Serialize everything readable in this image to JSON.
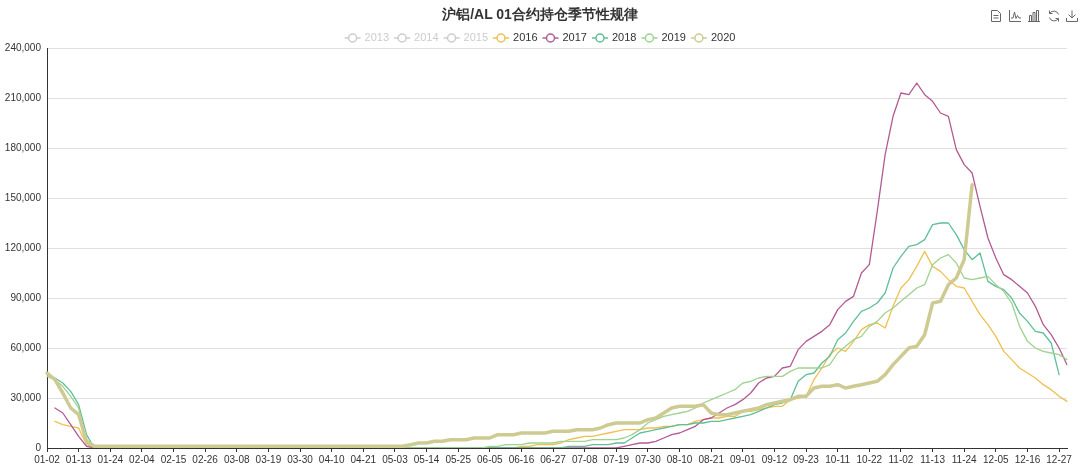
{
  "chart_data": {
    "type": "line",
    "title": "沪铝/AL 01合约持仓季节性规律",
    "legend": "top",
    "grid": "y",
    "marker": "none",
    "categories": [
      "01-02",
      null,
      null,
      null,
      "01-13",
      null,
      null,
      null,
      "01-24",
      null,
      null,
      null,
      "02-04",
      null,
      null,
      null,
      "02-15",
      null,
      null,
      null,
      "02-26",
      null,
      null,
      null,
      "03-08",
      null,
      null,
      null,
      "03-19",
      null,
      null,
      null,
      "03-30",
      null,
      null,
      null,
      "04-10",
      null,
      null,
      null,
      "04-21",
      null,
      null,
      null,
      "05-03",
      null,
      null,
      null,
      "05-14",
      null,
      null,
      null,
      "05-25",
      null,
      null,
      null,
      "06-05",
      null,
      null,
      null,
      "06-16",
      null,
      null,
      null,
      "06-27",
      null,
      null,
      null,
      "07-08",
      null,
      null,
      null,
      "07-19",
      null,
      null,
      null,
      "07-30",
      null,
      null,
      null,
      "08-10",
      null,
      null,
      null,
      "08-21",
      null,
      null,
      null,
      "09-01",
      null,
      null,
      null,
      "09-12",
      null,
      null,
      null,
      "09-23",
      null,
      null,
      null,
      "10-11",
      null,
      null,
      null,
      "10-22",
      null,
      null,
      null,
      "11-02",
      null,
      null,
      null,
      "11-13",
      null,
      null,
      null,
      "11-24",
      null,
      null,
      null,
      "12-05",
      null,
      null,
      null,
      "12-16",
      null,
      null,
      null,
      "12-27",
      null
    ],
    "ylim": [
      0,
      240000
    ],
    "yticks": [
      0,
      {
        "value": 30000,
        "label": "30,000"
      },
      {
        "value": 60000,
        "label": "60,000"
      },
      {
        "value": 90000,
        "label": "90,000"
      },
      {
        "value": 120000,
        "label": "120,000"
      },
      {
        "value": 150000,
        "label": "150,000"
      },
      {
        "value": 180000,
        "label": "180,000"
      },
      {
        "value": 210000,
        "label": "210,000"
      },
      {
        "value": 240000,
        "label": "240,000"
      }
    ],
    "series": [
      {
        "name": "2013",
        "color": "#cccccc",
        "values": [
          null,
          null,
          null,
          null,
          null,
          null,
          null,
          null,
          null,
          null,
          null,
          null,
          null,
          null,
          null,
          null,
          null,
          null,
          null,
          null,
          null,
          null,
          null,
          null,
          null,
          null,
          null,
          null,
          null,
          null,
          null,
          null,
          null,
          null,
          null,
          null,
          null,
          null,
          null,
          null,
          null,
          null,
          null,
          null,
          null,
          null,
          null,
          null,
          null,
          null,
          null,
          null,
          null,
          null,
          null,
          null,
          null,
          null,
          null,
          null,
          null,
          null,
          null,
          null,
          null,
          null,
          null,
          null,
          null,
          null,
          null,
          null,
          null,
          null,
          null,
          null,
          null,
          null,
          null,
          null,
          null,
          null,
          null,
          null,
          null,
          null,
          null,
          null,
          null,
          null,
          null,
          null,
          null,
          null,
          null,
          null,
          null,
          null,
          null,
          null,
          null,
          null,
          null,
          null,
          null,
          null,
          null,
          null,
          null,
          null,
          null,
          null,
          null,
          null,
          null,
          null,
          null,
          null,
          null,
          null,
          null,
          null,
          null,
          null,
          null,
          null,
          null,
          null,
          null,
          null
        ]
      },
      {
        "name": "2014",
        "color": "#cccccc",
        "values": [
          null,
          null,
          null,
          null,
          null,
          null,
          null,
          null,
          null,
          null,
          null,
          null,
          null,
          null,
          null,
          null,
          null,
          null,
          null,
          null,
          null,
          null,
          null,
          null,
          null,
          null,
          null,
          null,
          null,
          null,
          null,
          null,
          null,
          null,
          null,
          null,
          null,
          null,
          null,
          null,
          null,
          null,
          null,
          null,
          null,
          null,
          null,
          null,
          null,
          null,
          null,
          null,
          null,
          null,
          null,
          null,
          null,
          null,
          null,
          null,
          null,
          null,
          null,
          null,
          null,
          null,
          null,
          null,
          null,
          null,
          null,
          null,
          null,
          null,
          null,
          null,
          null,
          null,
          null,
          null,
          null,
          null,
          null,
          null,
          null,
          null,
          null,
          null,
          null,
          null,
          null,
          null,
          null,
          null,
          null,
          null,
          null,
          null,
          null,
          null,
          null,
          null,
          null,
          null,
          null,
          null,
          null,
          null,
          null,
          null,
          null,
          null,
          null,
          null,
          null,
          null,
          null,
          null,
          null,
          null,
          null,
          null,
          null,
          null,
          null,
          null,
          null,
          null,
          null,
          null
        ]
      },
      {
        "name": "2015",
        "color": "#cccccc",
        "values": [
          null,
          null,
          null,
          null,
          null,
          null,
          null,
          null,
          null,
          null,
          null,
          null,
          null,
          null,
          null,
          null,
          null,
          null,
          null,
          null,
          null,
          null,
          null,
          null,
          null,
          null,
          null,
          null,
          null,
          null,
          null,
          null,
          null,
          null,
          null,
          null,
          null,
          null,
          null,
          null,
          null,
          null,
          null,
          null,
          null,
          null,
          null,
          null,
          null,
          null,
          null,
          null,
          null,
          null,
          null,
          null,
          null,
          null,
          null,
          null,
          null,
          null,
          null,
          null,
          null,
          null,
          null,
          null,
          null,
          null,
          null,
          null,
          null,
          null,
          null,
          null,
          null,
          null,
          null,
          null,
          null,
          null,
          null,
          null,
          null,
          null,
          null,
          null,
          null,
          null,
          null,
          null,
          null,
          null,
          null,
          null,
          null,
          null,
          null,
          null,
          null,
          null,
          null,
          null,
          null,
          null,
          null,
          null,
          null,
          null,
          null,
          null,
          null,
          null,
          null,
          null,
          null,
          null,
          null,
          null,
          null,
          null,
          null,
          null,
          null,
          null,
          null,
          null,
          null,
          null
        ]
      },
      {
        "name": "2016",
        "color": "#efc050",
        "values": [
          null,
          16000,
          14000,
          13000,
          12000,
          2000,
          0,
          0,
          0,
          0,
          0,
          0,
          0,
          0,
          0,
          0,
          0,
          0,
          0,
          0,
          0,
          0,
          0,
          0,
          0,
          0,
          0,
          0,
          0,
          0,
          0,
          0,
          0,
          0,
          0,
          0,
          0,
          0,
          0,
          0,
          0,
          0,
          0,
          0,
          0,
          0,
          0,
          0,
          0,
          0,
          0,
          0,
          0,
          0,
          0,
          0,
          0,
          0,
          0,
          0,
          1000,
          1000,
          2000,
          2000,
          2000,
          3000,
          5000,
          6000,
          7000,
          7000,
          8000,
          9000,
          10000,
          11000,
          11000,
          11000,
          12000,
          12000,
          13000,
          13000,
          14000,
          14000,
          16000,
          17000,
          18000,
          18000,
          19000,
          19000,
          22000,
          22000,
          23000,
          24000,
          25000,
          25000,
          29000,
          30000,
          31000,
          41000,
          48000,
          56000,
          60000,
          58000,
          64000,
          71000,
          74000,
          75000,
          72000,
          85000,
          96000,
          101000,
          109000,
          118000,
          109000,
          106000,
          101000,
          97000,
          96000,
          88000,
          80000,
          74000,
          67000,
          58000,
          53000,
          48000,
          45000,
          42000,
          38000,
          35000,
          31000,
          28000
        ]
      },
      {
        "name": "2017",
        "color": "#b35a94",
        "values": [
          null,
          24000,
          21000,
          14000,
          7000,
          1000,
          0,
          0,
          0,
          0,
          0,
          0,
          0,
          0,
          0,
          0,
          0,
          0,
          0,
          0,
          0,
          0,
          0,
          0,
          0,
          0,
          0,
          0,
          0,
          0,
          0,
          0,
          0,
          0,
          0,
          0,
          0,
          0,
          0,
          0,
          0,
          0,
          0,
          0,
          0,
          0,
          0,
          0,
          0,
          0,
          0,
          0,
          0,
          0,
          0,
          0,
          0,
          0,
          0,
          0,
          0,
          0,
          0,
          0,
          0,
          0,
          0,
          0,
          0,
          0,
          0,
          0,
          0,
          1000,
          2000,
          3000,
          3000,
          4000,
          6000,
          8000,
          9000,
          11000,
          13000,
          17000,
          18000,
          21000,
          24000,
          26000,
          29000,
          33000,
          39000,
          42000,
          43000,
          48000,
          49000,
          59000,
          64000,
          67000,
          70000,
          74000,
          83000,
          88000,
          91000,
          105000,
          110000,
          142000,
          176000,
          199000,
          213000,
          212000,
          219000,
          212000,
          208000,
          201000,
          199000,
          179000,
          170000,
          165000,
          145000,
          126000,
          114000,
          104000,
          101000,
          97000,
          93000,
          85000,
          74000,
          68000,
          60000,
          50000
        ]
      },
      {
        "name": "2018",
        "color": "#5fbf97",
        "values": [
          44000,
          42000,
          39000,
          34000,
          26000,
          8000,
          0,
          0,
          0,
          0,
          0,
          0,
          0,
          0,
          0,
          0,
          0,
          0,
          0,
          0,
          0,
          0,
          0,
          0,
          0,
          0,
          0,
          0,
          0,
          0,
          0,
          0,
          0,
          0,
          0,
          0,
          0,
          0,
          0,
          0,
          0,
          0,
          0,
          0,
          0,
          0,
          0,
          0,
          0,
          0,
          0,
          0,
          0,
          0,
          0,
          0,
          0,
          0,
          0,
          0,
          0,
          0,
          0,
          0,
          0,
          0,
          1000,
          1000,
          1000,
          2000,
          2000,
          2000,
          3000,
          3000,
          6000,
          9000,
          10000,
          11000,
          12000,
          13000,
          14000,
          14000,
          15000,
          15000,
          16000,
          16000,
          17000,
          18000,
          19000,
          20000,
          22000,
          24000,
          26000,
          27000,
          29000,
          40000,
          44000,
          45000,
          51000,
          55000,
          65000,
          69000,
          76000,
          82000,
          84000,
          87000,
          93000,
          108000,
          115000,
          121000,
          122000,
          125000,
          134000,
          135000,
          135000,
          128000,
          119000,
          113000,
          117000,
          100000,
          97000,
          95000,
          90000,
          81000,
          76000,
          70000,
          69000,
          63000,
          44000,
          null
        ]
      },
      {
        "name": "2019",
        "color": "#9fd28f",
        "values": [
          43000,
          41000,
          37000,
          31000,
          24000,
          3000,
          0,
          0,
          0,
          0,
          0,
          0,
          0,
          0,
          0,
          0,
          0,
          0,
          0,
          0,
          0,
          0,
          0,
          0,
          0,
          0,
          0,
          0,
          0,
          0,
          0,
          0,
          0,
          0,
          0,
          0,
          0,
          0,
          0,
          0,
          0,
          0,
          0,
          0,
          0,
          0,
          0,
          0,
          0,
          0,
          0,
          0,
          0,
          0,
          0,
          0,
          1000,
          1000,
          2000,
          2000,
          2000,
          3000,
          3000,
          3000,
          3000,
          4000,
          4000,
          4000,
          4000,
          5000,
          5000,
          5000,
          5000,
          6000,
          8000,
          11000,
          15000,
          17000,
          19000,
          20000,
          21000,
          22000,
          24000,
          27000,
          29000,
          31000,
          33000,
          35000,
          39000,
          40000,
          42000,
          43000,
          43000,
          43000,
          46000,
          48000,
          48000,
          48000,
          48000,
          50000,
          57000,
          61000,
          65000,
          67000,
          73000,
          76000,
          81000,
          84000,
          88000,
          92000,
          96000,
          98000,
          110000,
          114000,
          116000,
          111000,
          102000,
          101000,
          102000,
          103000,
          98000,
          94000,
          87000,
          73000,
          64000,
          60000,
          58000,
          57000,
          56000,
          53000
        ]
      },
      {
        "name": "2020",
        "color": "#cdcb92",
        "values": [
          45000,
          41000,
          33000,
          24000,
          20000,
          4000,
          1000,
          1000,
          1000,
          1000,
          1000,
          1000,
          1000,
          1000,
          1000,
          1000,
          1000,
          1000,
          1000,
          1000,
          1000,
          1000,
          1000,
          1000,
          1000,
          1000,
          1000,
          1000,
          1000,
          1000,
          1000,
          1000,
          1000,
          1000,
          1000,
          1000,
          1000,
          1000,
          1000,
          1000,
          1000,
          1000,
          1000,
          1000,
          1000,
          1000,
          2000,
          3000,
          3000,
          4000,
          4000,
          5000,
          5000,
          5000,
          6000,
          6000,
          6000,
          8000,
          8000,
          8000,
          9000,
          9000,
          9000,
          9000,
          10000,
          10000,
          10000,
          11000,
          11000,
          11000,
          12000,
          14000,
          15000,
          15000,
          15000,
          15000,
          17000,
          18000,
          21000,
          24000,
          25000,
          25000,
          25000,
          26000,
          21000,
          20000,
          20000,
          21000,
          22000,
          23000,
          24000,
          26000,
          27000,
          28000,
          29000,
          31000,
          31000,
          36000,
          37000,
          37000,
          38000,
          36000,
          37000,
          38000,
          39000,
          40000,
          44000,
          50000,
          55000,
          60000,
          61000,
          68000,
          87000,
          88000,
          98000,
          102000,
          113000,
          158000,
          null,
          null,
          null,
          null,
          null,
          null,
          null,
          null,
          null,
          null,
          null,
          null
        ]
      }
    ]
  }
}
